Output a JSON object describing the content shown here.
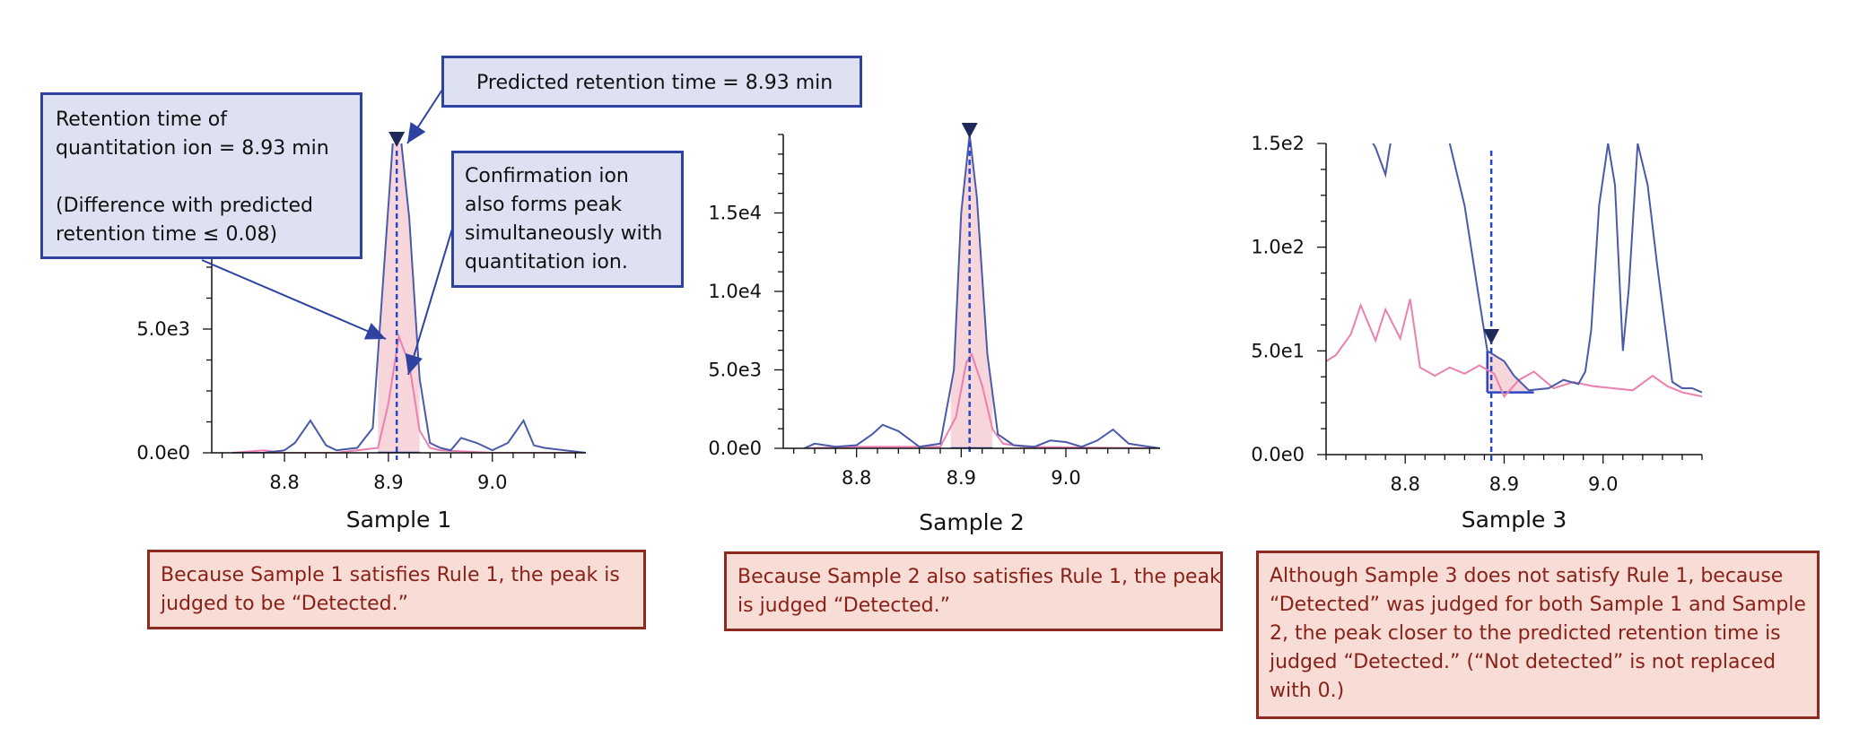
{
  "colors": {
    "quant_ion": "#4b5aa8",
    "confirm_ion": "#ec7fb0",
    "fill": "#f4cfd3",
    "rt_line": "#2747c8",
    "marker": "#1e2a5a",
    "callout_bg": "#dde1f1",
    "callout_border": "#2e43a0",
    "note_bg": "#f8dcd6",
    "note_border": "#8c2a22",
    "note_text": "#8a2119"
  },
  "callouts": {
    "predicted_rt": "Predicted retention time = 8.93 min",
    "quant_rt": {
      "line1": "Retention time of",
      "line2": "quantitation ion = 8.93 min",
      "line3": "(Difference with predicted",
      "line4": "retention time ≤ 0.08)"
    },
    "confirm": {
      "line1": "Confirmation ion",
      "line2": "also forms peak",
      "line3": "simultaneously with",
      "line4": "quantitation ion."
    }
  },
  "notes": {
    "sample1": {
      "line1": "Because Sample 1 satisfies Rule 1, the peak is",
      "line2": "judged to be “Detected.”"
    },
    "sample2": {
      "line1": "Because Sample 2 also satisfies Rule 1, the peak",
      "line2": "is judged “Detected.”"
    },
    "sample3": {
      "line1": "Although Sample 3 does not satisfy Rule 1, because",
      "line2": "“Detected” was judged for both Sample 1 and Sample",
      "line3": "2, the peak closer to the predicted retention time is",
      "line4": "judged “Detected.” (“Not detected” is not replaced",
      "line5": "with 0.)"
    }
  },
  "chart_data": [
    {
      "type": "line",
      "title": "Sample 1",
      "xlabel": "Sample 1",
      "xlim": [
        8.73,
        9.09
      ],
      "ylim": [
        0,
        12500
      ],
      "x_ticks": [
        8.8,
        8.9,
        9.0
      ],
      "x_tick_labels": [
        "8.8",
        "8.9",
        "9.0"
      ],
      "y_ticks": [
        0,
        5000,
        10000
      ],
      "y_tick_labels": [
        "0.0e0",
        "5.0e3",
        "1.0e4"
      ],
      "rt_marker": 8.908,
      "baseline": 0,
      "integrated_range": [
        8.89,
        8.93
      ],
      "series": [
        {
          "role": "quant",
          "x": [
            8.75,
            8.78,
            8.8,
            8.81,
            8.825,
            8.84,
            8.85,
            8.87,
            8.885,
            8.895,
            8.905,
            8.91,
            8.92,
            8.93,
            8.94,
            8.95,
            8.96,
            8.97,
            8.985,
            9.0,
            9.015,
            9.03,
            9.04,
            9.05,
            9.09
          ],
          "y": [
            0,
            0,
            100,
            400,
            1300,
            300,
            100,
            200,
            1000,
            7000,
            13000,
            13500,
            9500,
            3000,
            400,
            200,
            100,
            600,
            400,
            100,
            400,
            1300,
            300,
            200,
            0
          ]
        },
        {
          "role": "confirm",
          "x": [
            8.75,
            8.78,
            8.8,
            8.85,
            8.89,
            8.9,
            8.91,
            8.92,
            8.93,
            8.94,
            8.95,
            9.0,
            9.09
          ],
          "y": [
            0,
            100,
            0,
            0,
            200,
            2000,
            4700,
            3600,
            900,
            200,
            100,
            0,
            0
          ]
        }
      ]
    },
    {
      "type": "line",
      "title": "Sample 2",
      "xlabel": "Sample 2",
      "xlim": [
        8.73,
        9.09
      ],
      "ylim": [
        0,
        20000
      ],
      "x_ticks": [
        8.8,
        8.9,
        9.0
      ],
      "x_tick_labels": [
        "8.8",
        "8.9",
        "9.0"
      ],
      "y_ticks": [
        0,
        5000,
        10000,
        15000
      ],
      "y_tick_labels": [
        "0.0e0",
        "5.0e3",
        "1.0e4",
        "1.5e4"
      ],
      "rt_marker": 8.908,
      "baseline": 0,
      "integrated_range": [
        8.89,
        8.93
      ],
      "series": [
        {
          "role": "quant",
          "x": [
            8.75,
            8.76,
            8.78,
            8.8,
            8.815,
            8.825,
            8.84,
            8.86,
            8.88,
            8.893,
            8.9,
            8.908,
            8.915,
            8.925,
            8.935,
            8.95,
            8.97,
            8.985,
            9.0,
            9.015,
            9.03,
            9.045,
            9.06,
            9.09
          ],
          "y": [
            0,
            300,
            100,
            200,
            900,
            1500,
            1100,
            100,
            300,
            5000,
            15000,
            20000,
            16000,
            6000,
            900,
            200,
            100,
            500,
            400,
            100,
            500,
            1200,
            300,
            0
          ]
        },
        {
          "role": "confirm",
          "x": [
            8.75,
            8.8,
            8.88,
            8.895,
            8.905,
            8.91,
            8.92,
            8.93,
            8.94,
            8.96,
            9.09
          ],
          "y": [
            0,
            100,
            100,
            2000,
            5500,
            6000,
            4000,
            1200,
            300,
            100,
            0
          ]
        }
      ]
    },
    {
      "type": "line",
      "title": "Sample 3",
      "xlabel": "Sample 3",
      "xlim": [
        8.72,
        9.1
      ],
      "ylim": [
        0,
        150
      ],
      "x_ticks": [
        8.8,
        8.9,
        9.0
      ],
      "x_tick_labels": [
        "8.8",
        "8.9",
        "9.0"
      ],
      "y_ticks": [
        0,
        50,
        100,
        150
      ],
      "y_tick_labels": [
        "0.0e0",
        "5.0e1",
        "1.0e2",
        "1.5e2"
      ],
      "rt_marker": 8.887,
      "baseline": 30,
      "integrated_range": [
        8.883,
        8.93
      ],
      "series": [
        {
          "role": "quant",
          "x": [
            8.765,
            8.77,
            8.78,
            8.785,
            8.79,
            8.8,
            8.84,
            8.86,
            8.873,
            8.883,
            8.89,
            8.9,
            8.91,
            8.925,
            8.945,
            8.96,
            8.975,
            8.982,
            8.988,
            8.996,
            9.005,
            9.012,
            9.02,
            9.026,
            9.035,
            9.045,
            9.055,
            9.07,
            9.08,
            9.09,
            9.1
          ],
          "y": [
            152,
            148,
            135,
            150,
            170,
            180,
            160,
            120,
            80,
            50,
            48,
            45,
            38,
            31,
            32,
            36,
            34,
            40,
            60,
            120,
            150,
            130,
            50,
            80,
            150,
            130,
            90,
            35,
            32,
            32,
            30
          ]
        },
        {
          "role": "confirm",
          "x": [
            8.72,
            8.73,
            8.745,
            8.755,
            8.77,
            8.78,
            8.795,
            8.805,
            8.815,
            8.83,
            8.845,
            8.86,
            8.875,
            8.89,
            8.9,
            8.915,
            8.93,
            8.95,
            8.97,
            8.99,
            9.01,
            9.03,
            9.05,
            9.065,
            9.08,
            9.1
          ],
          "y": [
            45,
            48,
            58,
            72,
            55,
            70,
            56,
            75,
            42,
            38,
            42,
            39,
            43,
            39,
            28,
            36,
            40,
            32,
            35,
            33,
            32,
            31,
            38,
            33,
            30,
            28
          ]
        }
      ]
    }
  ]
}
